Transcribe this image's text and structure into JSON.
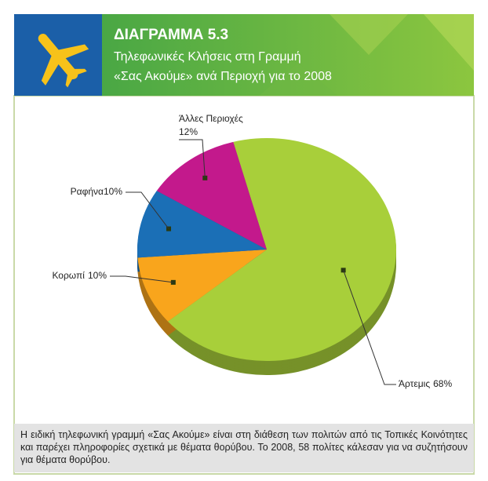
{
  "chart_data": {
    "type": "pie",
    "title": "ΔΙΑΓΡΑΜΜΑ 5.3",
    "subtitle": [
      "Τηλεφωνικές Κλήσεις στη Γραμμή",
      "«Σας Ακούμε» ανά Περιοχή για το 2008"
    ],
    "categories": [
      "Άρτεμις",
      "Κορωπί",
      "Ραφήνα",
      "Άλλες Περιοχές"
    ],
    "values": [
      68,
      10,
      10,
      12
    ],
    "value_labels": [
      "68%",
      "10%",
      "10%",
      "12%"
    ],
    "colors": [
      "#a8cf3a",
      "#f9a51c",
      "#1b6fb6",
      "#c3198c"
    ],
    "note": "Η ειδική τηλεφωνική γραμμή «Σας Ακούμε» είναι στη διάθεση των πολιτών από τις Τοπικές Κοινότητες και παρέχει πληροφορίες σχετικά με θέματα θορύβου. Το 2008, 58 πολίτες κάλεσαν για να συζητήσουν για θέματα θορύβου."
  }
}
